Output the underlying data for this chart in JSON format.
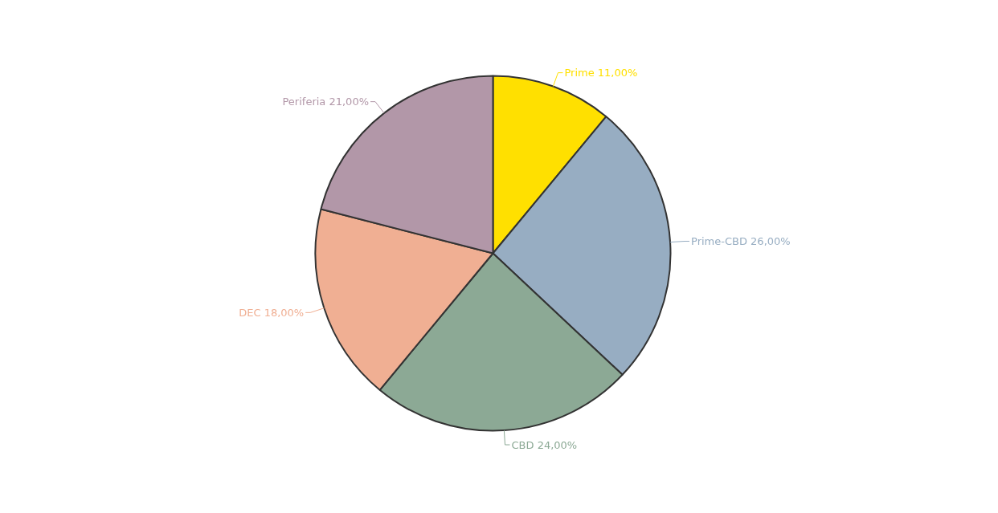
{
  "chart_data": {
    "type": "pie",
    "categories": [
      "Prime",
      "Prime-CBD",
      "CBD",
      "DEC",
      "Periferia"
    ],
    "values": [
      11,
      26,
      24,
      18,
      21
    ],
    "value_labels": [
      "11,00%",
      "26,00%",
      "24,00%",
      "18,00%",
      "21,00%"
    ],
    "colors": [
      "#ffe000",
      "#97adc2",
      "#8ca995",
      "#f0af93",
      "#b297a8"
    ]
  }
}
